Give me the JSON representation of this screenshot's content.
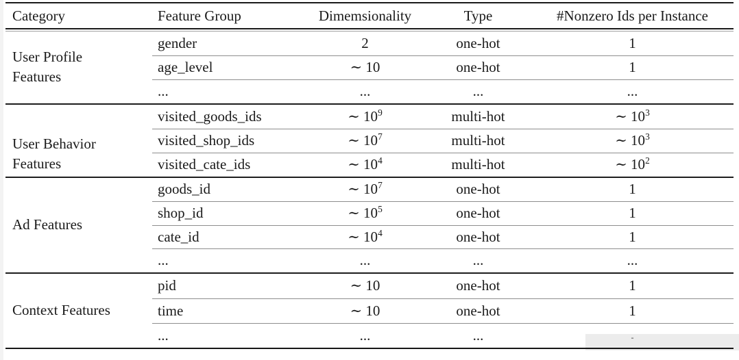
{
  "header": {
    "category": "Category",
    "feature_group": "Feature Group",
    "dimensionality": "Dimemsionality",
    "type": "Type",
    "nonzero": "#Nonzero Ids per Instance"
  },
  "groups": [
    {
      "category_lines": [
        "User Profile",
        "Features"
      ],
      "rows": [
        {
          "feature": "gender",
          "dim_base": "2",
          "dim_exp": "",
          "type": "one-hot",
          "nz_base": "1",
          "nz_exp": ""
        },
        {
          "feature": "age_level",
          "dim_base": "∼ 10",
          "dim_exp": "",
          "type": "one-hot",
          "nz_base": "1",
          "nz_exp": ""
        },
        {
          "feature": "...",
          "dim_base": "...",
          "dim_exp": "",
          "type": "...",
          "nz_base": "...",
          "nz_exp": ""
        }
      ]
    },
    {
      "category_lines": [
        "User Behavior",
        "Features"
      ],
      "rows": [
        {
          "feature": "visited_goods_ids",
          "dim_base": "∼ 10",
          "dim_exp": "9",
          "type": "multi-hot",
          "nz_base": "∼ 10",
          "nz_exp": "3"
        },
        {
          "feature": "visited_shop_ids",
          "dim_base": "∼ 10",
          "dim_exp": "7",
          "type": "multi-hot",
          "nz_base": "∼ 10",
          "nz_exp": "3"
        },
        {
          "feature": "visited_cate_ids",
          "dim_base": "∼ 10",
          "dim_exp": "4",
          "type": "multi-hot",
          "nz_base": "∼ 10",
          "nz_exp": "2"
        }
      ]
    },
    {
      "category_lines": [
        "Ad Features"
      ],
      "rows": [
        {
          "feature": "goods_id",
          "dim_base": "∼ 10",
          "dim_exp": "7",
          "type": "one-hot",
          "nz_base": "1",
          "nz_exp": ""
        },
        {
          "feature": "shop_id",
          "dim_base": "∼ 10",
          "dim_exp": "5",
          "type": "one-hot",
          "nz_base": "1",
          "nz_exp": ""
        },
        {
          "feature": "cate_id",
          "dim_base": "∼ 10",
          "dim_exp": "4",
          "type": "one-hot",
          "nz_base": "1",
          "nz_exp": ""
        },
        {
          "feature": "...",
          "dim_base": "...",
          "dim_exp": "",
          "type": "...",
          "nz_base": "...",
          "nz_exp": ""
        }
      ]
    },
    {
      "category_lines": [
        "Context Features"
      ],
      "rows": [
        {
          "feature": "pid",
          "dim_base": "∼ 10",
          "dim_exp": "",
          "type": "one-hot",
          "nz_base": "1",
          "nz_exp": ""
        },
        {
          "feature": "time",
          "dim_base": "∼ 10",
          "dim_exp": "",
          "type": "one-hot",
          "nz_base": "1",
          "nz_exp": ""
        },
        {
          "feature": "...",
          "dim_base": "...",
          "dim_exp": "",
          "type": "...",
          "nz_base": "-",
          "nz_exp": ""
        }
      ]
    }
  ]
}
